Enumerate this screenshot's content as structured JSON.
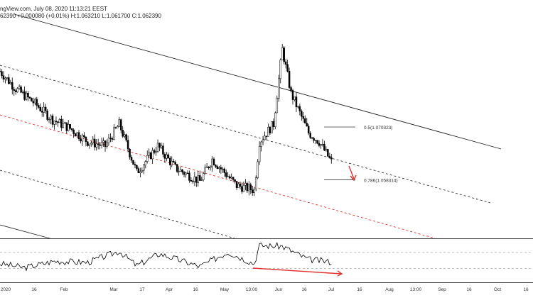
{
  "header": {
    "source": "ngView.com, July 08, 2020 11:13:21 EEST",
    "line2_prefix": "62390",
    "change": "+0.000080 (+0.01%)",
    "o_label": "H:",
    "high": "1.063210",
    "l_label": "L:",
    "low": "1.061700",
    "c_label": "C:",
    "close": "1.062390"
  },
  "chart_data": [
    {
      "type": "candlestick",
      "title": "",
      "xlabel": "",
      "ylabel": "",
      "x_ticks": [
        "2020",
        "16",
        "Feb",
        "Mar",
        "17",
        "Apr",
        "16",
        "May",
        "13:00",
        "Jun",
        "16",
        "Jul",
        "16",
        "Aug",
        "13:00",
        "Sep",
        "16",
        "Oct",
        "16"
      ],
      "x_range": [
        "2020-01-01",
        "2020-10-31"
      ],
      "ylim": [
        1.045,
        1.096
      ],
      "grid": false,
      "approx_close_series": [
        {
          "x": "2020-01-01",
          "y": 1.083
        },
        {
          "x": "2020-01-10",
          "y": 1.079
        },
        {
          "x": "2020-01-20",
          "y": 1.076
        },
        {
          "x": "2020-01-31",
          "y": 1.072
        },
        {
          "x": "2020-02-10",
          "y": 1.07
        },
        {
          "x": "2020-02-20",
          "y": 1.067
        },
        {
          "x": "2020-03-01",
          "y": 1.066
        },
        {
          "x": "2020-03-09",
          "y": 1.071
        },
        {
          "x": "2020-03-19",
          "y": 1.06
        },
        {
          "x": "2020-03-31",
          "y": 1.066
        },
        {
          "x": "2020-04-10",
          "y": 1.061
        },
        {
          "x": "2020-04-24",
          "y": 1.058
        },
        {
          "x": "2020-05-01",
          "y": 1.063
        },
        {
          "x": "2020-05-15",
          "y": 1.057
        },
        {
          "x": "2020-05-25",
          "y": 1.056
        },
        {
          "x": "2020-05-28",
          "y": 1.067
        },
        {
          "x": "2020-06-05",
          "y": 1.071
        },
        {
          "x": "2020-06-10",
          "y": 1.088
        },
        {
          "x": "2020-06-15",
          "y": 1.078
        },
        {
          "x": "2020-06-25",
          "y": 1.069
        },
        {
          "x": "2020-07-01",
          "y": 1.067
        },
        {
          "x": "2020-07-08",
          "y": 1.0624
        }
      ],
      "fib_levels": [
        {
          "label": "0.5(1.070323)",
          "value": 1.070323
        },
        {
          "label": "0.786(1.058314)",
          "value": 1.058314
        }
      ],
      "trend_channels": {
        "upper_black": "solid",
        "upper_dashed": "dashed",
        "middle_red": "dashed",
        "lower_dashed": "dashed",
        "lower_black": "solid"
      },
      "colors": {
        "candles": "#000000",
        "channel": "#000000",
        "midline": "#e03030",
        "arrow": "#e03030"
      }
    },
    {
      "type": "line",
      "title": "",
      "xlabel": "",
      "ylabel": "",
      "ylim": [
        0,
        100
      ],
      "grid": false,
      "levels_dashed": [
        70,
        30
      ],
      "approx_series": [
        {
          "x": "2020-01-01",
          "y": 42
        },
        {
          "x": "2020-01-15",
          "y": 32
        },
        {
          "x": "2020-02-01",
          "y": 48
        },
        {
          "x": "2020-02-20",
          "y": 45
        },
        {
          "x": "2020-03-09",
          "y": 72
        },
        {
          "x": "2020-03-19",
          "y": 37
        },
        {
          "x": "2020-04-01",
          "y": 66
        },
        {
          "x": "2020-04-24",
          "y": 35
        },
        {
          "x": "2020-05-10",
          "y": 70
        },
        {
          "x": "2020-05-25",
          "y": 42
        },
        {
          "x": "2020-05-28",
          "y": 86
        },
        {
          "x": "2020-06-10",
          "y": 84
        },
        {
          "x": "2020-06-25",
          "y": 52
        },
        {
          "x": "2020-07-08",
          "y": 46
        }
      ],
      "divergence_arrow": "from 2020-05-25 down to 2020-07-08",
      "colors": {
        "line": "#000000",
        "arrow": "#e03030"
      }
    }
  ]
}
